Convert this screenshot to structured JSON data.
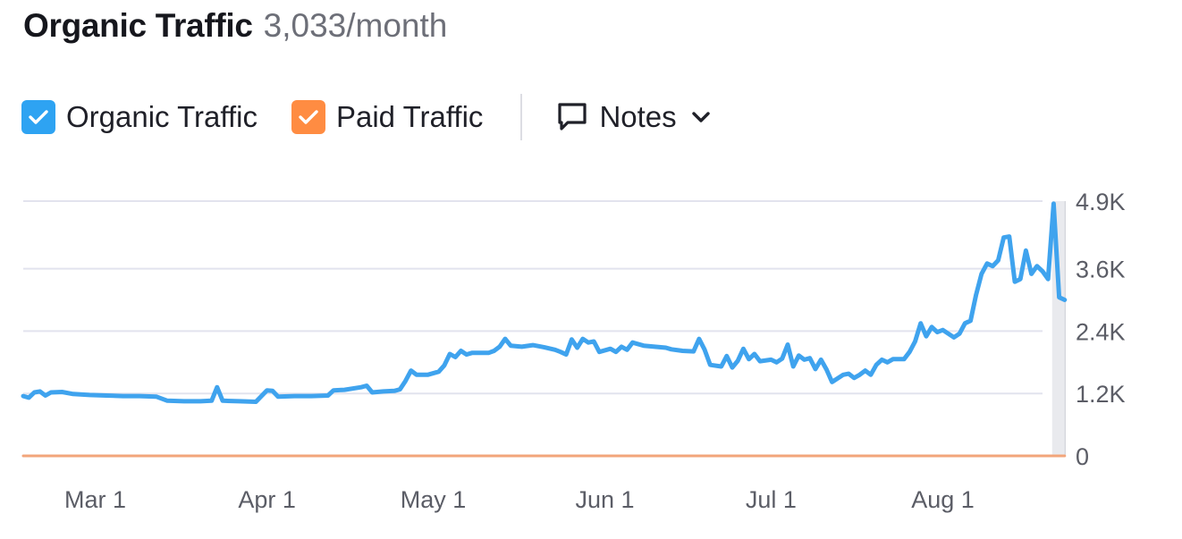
{
  "header": {
    "title": "Organic Traffic",
    "value": "3,033/month"
  },
  "legend": {
    "organic_label": "Organic Traffic",
    "paid_label": "Paid Traffic",
    "notes_label": "Notes"
  },
  "colors": {
    "organic": "#3fa3ee",
    "organic_checkbox": "#2ea3f2",
    "paid": "#f2a57a",
    "paid_checkbox": "#ff8c42",
    "grid": "#e2e3ee",
    "axis_text": "#5b5d66"
  },
  "icons": {
    "organic_checkbox": "checkmark-icon",
    "paid_checkbox": "checkmark-icon",
    "notes": "speech-bubble-icon",
    "notes_dropdown": "chevron-down-icon"
  },
  "chart_data": {
    "type": "line",
    "ylim": [
      0,
      4900
    ],
    "yticks": [
      0,
      1200,
      2400,
      3600,
      4900
    ],
    "ytick_labels": [
      "0",
      "1.2K",
      "2.4K",
      "3.6K",
      "4.9K"
    ],
    "y_axis_position": "right",
    "grid": true,
    "xlim": [
      "2021-02-16",
      "2021-08-19"
    ],
    "xticks": [
      "2021-03-01",
      "2021-04-01",
      "2021-05-01",
      "2021-06-01",
      "2021-07-01",
      "2021-08-01"
    ],
    "xtick_labels": [
      "Mar 1",
      "Apr 1",
      "May 1",
      "Jun 1",
      "Jul 1",
      "Aug 1"
    ],
    "series": [
      {
        "name": "Organic Traffic",
        "color": "#3fa3ee",
        "points": [
          [
            "2021-02-16",
            1150
          ],
          [
            "2021-02-17",
            1120
          ],
          [
            "2021-02-18",
            1220
          ],
          [
            "2021-02-19",
            1240
          ],
          [
            "2021-02-20",
            1160
          ],
          [
            "2021-02-21",
            1220
          ],
          [
            "2021-02-23",
            1230
          ],
          [
            "2021-02-25",
            1190
          ],
          [
            "2021-02-28",
            1170
          ],
          [
            "2021-03-03",
            1160
          ],
          [
            "2021-03-06",
            1150
          ],
          [
            "2021-03-09",
            1150
          ],
          [
            "2021-03-12",
            1140
          ],
          [
            "2021-03-14",
            1060
          ],
          [
            "2021-03-17",
            1050
          ],
          [
            "2021-03-20",
            1050
          ],
          [
            "2021-03-22",
            1060
          ],
          [
            "2021-03-23",
            1320
          ],
          [
            "2021-03-24",
            1060
          ],
          [
            "2021-03-27",
            1050
          ],
          [
            "2021-03-30",
            1040
          ],
          [
            "2021-04-01",
            1260
          ],
          [
            "2021-04-02",
            1250
          ],
          [
            "2021-04-03",
            1140
          ],
          [
            "2021-04-06",
            1150
          ],
          [
            "2021-04-09",
            1150
          ],
          [
            "2021-04-12",
            1160
          ],
          [
            "2021-04-13",
            1260
          ],
          [
            "2021-04-15",
            1270
          ],
          [
            "2021-04-18",
            1320
          ],
          [
            "2021-04-19",
            1350
          ],
          [
            "2021-04-20",
            1220
          ],
          [
            "2021-04-22",
            1240
          ],
          [
            "2021-04-24",
            1250
          ],
          [
            "2021-04-25",
            1280
          ],
          [
            "2021-04-26",
            1440
          ],
          [
            "2021-04-27",
            1640
          ],
          [
            "2021-04-28",
            1560
          ],
          [
            "2021-04-30",
            1560
          ],
          [
            "2021-05-02",
            1620
          ],
          [
            "2021-05-03",
            1740
          ],
          [
            "2021-05-04",
            1960
          ],
          [
            "2021-05-05",
            1900
          ],
          [
            "2021-05-06",
            2020
          ],
          [
            "2021-05-07",
            1950
          ],
          [
            "2021-05-08",
            1980
          ],
          [
            "2021-05-11",
            1980
          ],
          [
            "2021-05-12",
            2020
          ],
          [
            "2021-05-13",
            2100
          ],
          [
            "2021-05-14",
            2250
          ],
          [
            "2021-05-15",
            2120
          ],
          [
            "2021-05-17",
            2100
          ],
          [
            "2021-05-19",
            2130
          ],
          [
            "2021-05-21",
            2090
          ],
          [
            "2021-05-23",
            2040
          ],
          [
            "2021-05-24",
            2000
          ],
          [
            "2021-05-25",
            1950
          ],
          [
            "2021-05-26",
            2240
          ],
          [
            "2021-05-27",
            2080
          ],
          [
            "2021-05-28",
            2250
          ],
          [
            "2021-05-29",
            2180
          ],
          [
            "2021-05-30",
            2200
          ],
          [
            "2021-05-31",
            2000
          ],
          [
            "2021-06-02",
            2060
          ],
          [
            "2021-06-03",
            2000
          ],
          [
            "2021-06-04",
            2100
          ],
          [
            "2021-06-05",
            2040
          ],
          [
            "2021-06-06",
            2180
          ],
          [
            "2021-06-08",
            2120
          ],
          [
            "2021-06-10",
            2100
          ],
          [
            "2021-06-12",
            2080
          ],
          [
            "2021-06-13",
            2050
          ],
          [
            "2021-06-15",
            2020
          ],
          [
            "2021-06-17",
            2010
          ],
          [
            "2021-06-18",
            2250
          ],
          [
            "2021-06-19",
            2040
          ],
          [
            "2021-06-20",
            1750
          ],
          [
            "2021-06-22",
            1720
          ],
          [
            "2021-06-23",
            1920
          ],
          [
            "2021-06-24",
            1700
          ],
          [
            "2021-06-25",
            1830
          ],
          [
            "2021-06-26",
            2060
          ],
          [
            "2021-06-27",
            1860
          ],
          [
            "2021-06-28",
            1960
          ],
          [
            "2021-06-29",
            1820
          ],
          [
            "2021-07-01",
            1850
          ],
          [
            "2021-07-02",
            1800
          ],
          [
            "2021-07-03",
            1870
          ],
          [
            "2021-07-04",
            2140
          ],
          [
            "2021-07-05",
            1720
          ],
          [
            "2021-07-06",
            1930
          ],
          [
            "2021-07-07",
            1850
          ],
          [
            "2021-07-08",
            1880
          ],
          [
            "2021-07-09",
            1670
          ],
          [
            "2021-07-10",
            1850
          ],
          [
            "2021-07-11",
            1660
          ],
          [
            "2021-07-12",
            1420
          ],
          [
            "2021-07-14",
            1560
          ],
          [
            "2021-07-15",
            1580
          ],
          [
            "2021-07-16",
            1500
          ],
          [
            "2021-07-17",
            1560
          ],
          [
            "2021-07-18",
            1640
          ],
          [
            "2021-07-19",
            1560
          ],
          [
            "2021-07-20",
            1750
          ],
          [
            "2021-07-21",
            1850
          ],
          [
            "2021-07-22",
            1800
          ],
          [
            "2021-07-23",
            1860
          ],
          [
            "2021-07-25",
            1860
          ],
          [
            "2021-07-26",
            2000
          ],
          [
            "2021-07-27",
            2200
          ],
          [
            "2021-07-28",
            2550
          ],
          [
            "2021-07-29",
            2300
          ],
          [
            "2021-07-30",
            2480
          ],
          [
            "2021-07-31",
            2380
          ],
          [
            "2021-08-01",
            2420
          ],
          [
            "2021-08-02",
            2350
          ],
          [
            "2021-08-03",
            2280
          ],
          [
            "2021-08-04",
            2350
          ],
          [
            "2021-08-05",
            2550
          ],
          [
            "2021-08-06",
            2600
          ],
          [
            "2021-08-07",
            3100
          ],
          [
            "2021-08-08",
            3500
          ],
          [
            "2021-08-09",
            3700
          ],
          [
            "2021-08-10",
            3650
          ],
          [
            "2021-08-11",
            3760
          ],
          [
            "2021-08-12",
            4200
          ],
          [
            "2021-08-13",
            4220
          ],
          [
            "2021-08-14",
            3350
          ],
          [
            "2021-08-15",
            3400
          ],
          [
            "2021-08-16",
            3950
          ],
          [
            "2021-08-17",
            3500
          ],
          [
            "2021-08-18",
            3650
          ],
          [
            "2021-08-19",
            3550
          ],
          [
            "2021-08-20",
            3400
          ],
          [
            "2021-08-21",
            4850
          ],
          [
            "2021-08-22",
            3050
          ],
          [
            "2021-08-23",
            3000
          ]
        ]
      },
      {
        "name": "Paid Traffic",
        "color": "#f2a57a",
        "points": [
          [
            "2021-02-16",
            0
          ],
          [
            "2021-08-23",
            0
          ]
        ]
      }
    ]
  }
}
